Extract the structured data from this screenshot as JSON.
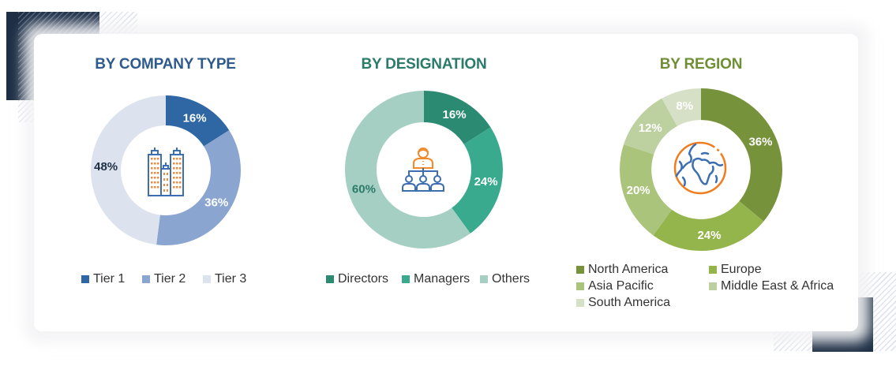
{
  "chart_data": [
    {
      "type": "pie",
      "title": "BY COMPANY TYPE",
      "categories": [
        "Tier 1",
        "Tier 2",
        "Tier 3"
      ],
      "values": [
        16,
        36,
        48
      ],
      "labels": [
        "16%",
        "36%",
        "48%"
      ],
      "colors": [
        "#2e67a3",
        "#8aa5cf",
        "#dde3ee"
      ],
      "donut": true,
      "legend_position": "bottom",
      "center_icon": "buildings-icon"
    },
    {
      "type": "pie",
      "title": "BY DESIGNATION",
      "categories": [
        "Directors",
        "Managers",
        "Others"
      ],
      "values": [
        16,
        24,
        60
      ],
      "labels": [
        "16%",
        "24%",
        "60%"
      ],
      "colors": [
        "#2b8a72",
        "#3aaa8f",
        "#a6cfc3"
      ],
      "donut": true,
      "legend_position": "bottom",
      "center_icon": "org-hierarchy-icon"
    },
    {
      "type": "pie",
      "title": "BY REGION",
      "categories": [
        "North America",
        "Europe",
        "Asia Pacific",
        "Middle East & Africa",
        "South America"
      ],
      "values": [
        36,
        24,
        20,
        12,
        8
      ],
      "labels": [
        "36%",
        "24%",
        "20%",
        "12%",
        "8%"
      ],
      "colors": [
        "#76923a",
        "#94b44c",
        "#aac47c",
        "#bcd0a0",
        "#d6e0c6"
      ],
      "donut": true,
      "legend_position": "bottom",
      "center_icon": "globe-icon"
    }
  ],
  "panels": {
    "company": {
      "title": "BY COMPANY TYPE",
      "title_color": "#2e5a8c",
      "legend": [
        "Tier 1",
        "Tier 2",
        "Tier 3"
      ]
    },
    "designation": {
      "title": "BY DESIGNATION",
      "title_color": "#2b7a6a",
      "legend": [
        "Directors",
        "Managers",
        "Others"
      ]
    },
    "region": {
      "title": "BY REGION",
      "title_color": "#6f8f35",
      "legend": [
        "North America",
        "Europe",
        "Asia Pacific",
        "Middle East & Africa",
        "South America"
      ]
    }
  }
}
